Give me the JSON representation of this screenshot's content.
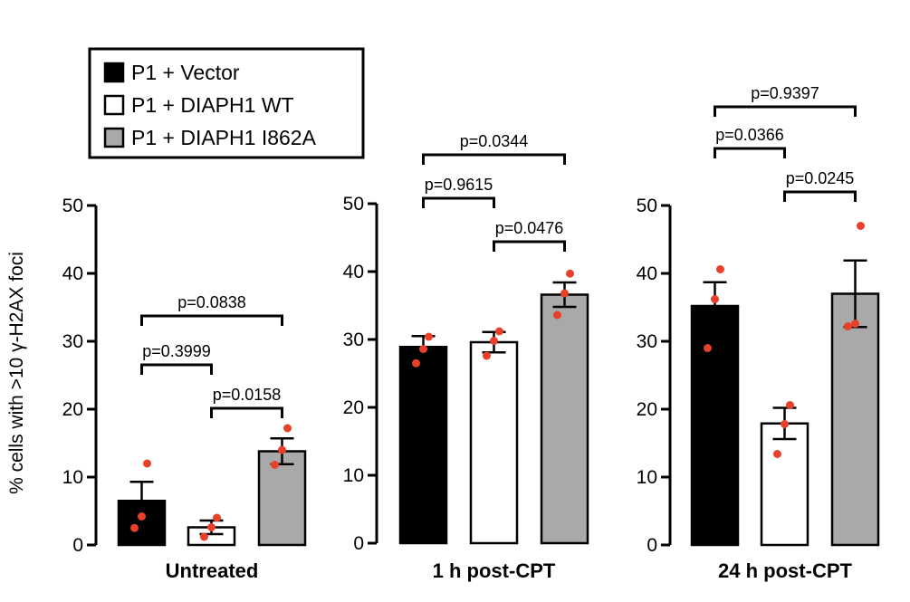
{
  "colors": {
    "vector": "#000000",
    "wt": "#ffffff",
    "i862a": "#a9a9a9",
    "dot": "#e8402a",
    "axis": "#000000"
  },
  "legend": {
    "entries": [
      {
        "label": "P1 + Vector",
        "color": "#000000"
      },
      {
        "label": "P1 + DIAPH1 WT",
        "color": "#ffffff"
      },
      {
        "label": "P1 + DIAPH1 I862A",
        "color": "#a9a9a9"
      }
    ]
  },
  "chart_data": {
    "type": "bar",
    "ylabel": "% cells with >10 γ-H2AX foci",
    "ylim": [
      0,
      50
    ],
    "yticks": [
      0,
      10,
      20,
      30,
      40,
      50
    ],
    "series_names": [
      "P1 + Vector",
      "P1 + DIAPH1 WT",
      "P1 + DIAPH1 I862A"
    ],
    "panels": [
      {
        "title": "Untreated",
        "means": [
          6.5,
          2.6,
          13.8
        ],
        "sem": [
          2.8,
          1.0,
          1.9
        ],
        "points": [
          [
            2.5,
            4.2,
            12.0
          ],
          [
            1.2,
            2.6,
            4.0
          ],
          [
            11.8,
            14.0,
            17.2
          ]
        ],
        "comparisons": [
          {
            "pair": [
              0,
              1
            ],
            "label": "p=0.3999"
          },
          {
            "pair": [
              1,
              2
            ],
            "label": "p=0.0158"
          },
          {
            "pair": [
              0,
              2
            ],
            "label": "p=0.0838"
          }
        ]
      },
      {
        "title": "1 h post-CPT",
        "means": [
          28.9,
          29.6,
          36.6
        ],
        "sem": [
          1.6,
          1.5,
          1.8
        ],
        "points": [
          [
            26.5,
            28.6,
            30.4
          ],
          [
            27.6,
            29.8,
            31.2
          ],
          [
            33.6,
            36.8,
            39.7
          ]
        ],
        "comparisons": [
          {
            "pair": [
              0,
              1
            ],
            "label": "p=0.9615"
          },
          {
            "pair": [
              1,
              2
            ],
            "label": "p=0.0476"
          },
          {
            "pair": [
              0,
              2
            ],
            "label": "p=0.0344"
          }
        ]
      },
      {
        "title": "24 h post-CPT",
        "means": [
          35.2,
          17.9,
          37.0
        ],
        "sem": [
          3.5,
          2.3,
          4.9
        ],
        "points": [
          [
            29.0,
            36.2,
            40.6
          ],
          [
            13.4,
            17.8,
            20.6
          ],
          [
            32.2,
            32.6,
            47.0
          ]
        ],
        "comparisons": [
          {
            "pair": [
              0,
              1
            ],
            "label": "p=0.0366"
          },
          {
            "pair": [
              1,
              2
            ],
            "label": "p=0.0245"
          },
          {
            "pair": [
              0,
              2
            ],
            "label": "p=0.9397"
          }
        ]
      }
    ]
  }
}
